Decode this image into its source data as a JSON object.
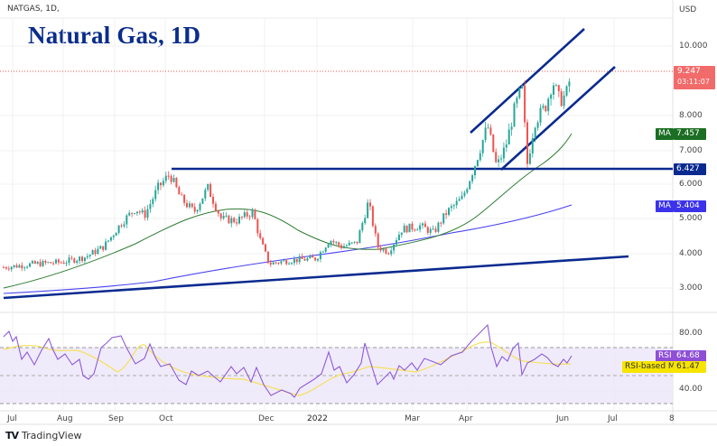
{
  "header": {
    "symbol_line": "NATGAS, 1D,",
    "title": "Natural Gas, 1D",
    "currency": "USD"
  },
  "footer": {
    "brand": "TradingView",
    "brand_mark": "TV"
  },
  "colors": {
    "title": "#0a2d8c",
    "trendline": "#0a2a8f",
    "bull": "#26a69a",
    "bear": "#ef5350",
    "ma_fast": "#2e7d32",
    "ma_slow": "#4a42f0",
    "rsi": "#8e5bd8",
    "rsi_ma": "#f5e15a",
    "rsi_band": "#ece6fa",
    "last_price": "#f05350"
  },
  "price_axis": {
    "ticks": [
      "10.000",
      "8.000",
      "7.000",
      "6.000",
      "5.000",
      "4.000",
      "3.000"
    ],
    "last_price": "9.247",
    "countdown": "03:11:07",
    "ma_fast_label": "MA",
    "ma_fast_value": "7.457",
    "ma_slow_label": "MA",
    "ma_slow_value": "5.404",
    "horizontal_level": "6.427"
  },
  "rsi_axis": {
    "ticks": [
      "80.00",
      "40.00"
    ],
    "rsi_label": "RSI",
    "rsi_value": "64.68",
    "rsi_ma_label": "RSI-based MA",
    "rsi_ma_value": "61.47"
  },
  "time_axis": {
    "ticks": [
      "Jul",
      "Aug",
      "Sep",
      "Oct",
      "Dec",
      "2022",
      "Mar",
      "Apr",
      "Jun",
      "Jul",
      "8"
    ]
  },
  "chart_data": [
    {
      "type": "candlestick",
      "title": "Natural Gas, 1D",
      "symbol": "NATGAS",
      "interval": "1D",
      "ylabel": "USD",
      "ylim": [
        2.6,
        10.8
      ],
      "x_ticks": [
        "Jul",
        "Aug",
        "Sep",
        "Oct",
        "Dec",
        "2022",
        "Mar",
        "Apr",
        "Jun",
        "Jul",
        "8"
      ],
      "y_ticks": [
        3.0,
        4.0,
        5.0,
        6.0,
        7.0,
        8.0,
        10.0
      ],
      "grid": true,
      "approx_close_path": [
        {
          "x": "Jul 2021",
          "close": 3.6
        },
        {
          "x": "Aug 2021",
          "close": 3.9
        },
        {
          "x": "Sep 2021",
          "close": 5.0
        },
        {
          "x": "Oct 2021",
          "close": 6.3
        },
        {
          "x": "Nov 2021",
          "close": 5.1
        },
        {
          "x": "Dec 2021",
          "close": 3.8
        },
        {
          "x": "Jan 2022",
          "close": 4.2
        },
        {
          "x": "Feb 2022",
          "close": 4.6
        },
        {
          "x": "Mar 2022",
          "close": 5.0
        },
        {
          "x": "Apr 2022",
          "close": 6.4
        },
        {
          "x": "May 2022",
          "close": 8.6
        },
        {
          "x": "Jun 2022",
          "close": 9.247
        }
      ],
      "series": [
        {
          "name": "MA (fast)",
          "last": 7.457
        },
        {
          "name": "MA (slow)",
          "last": 5.404
        }
      ],
      "annotations": [
        {
          "type": "horizontal_line",
          "value": 6.427
        },
        {
          "type": "rising_channel_upper",
          "from": "Apr 2022",
          "to": "Jun 2022"
        },
        {
          "type": "rising_channel_lower",
          "from": "Apr 2022",
          "to": "Jun 2022"
        },
        {
          "type": "rising_support_trendline",
          "from_value": 2.75,
          "to_value": 3.95
        }
      ],
      "last_price": 9.247,
      "bar_countdown": "03:11:07"
    },
    {
      "type": "line",
      "title": "RSI",
      "ylim": [
        20,
        95
      ],
      "y_ticks": [
        40.0,
        80.0
      ],
      "bands": [
        30,
        50,
        70
      ],
      "series": [
        {
          "name": "RSI",
          "last": 64.68
        },
        {
          "name": "RSI-based MA",
          "last": 61.47
        }
      ]
    }
  ]
}
